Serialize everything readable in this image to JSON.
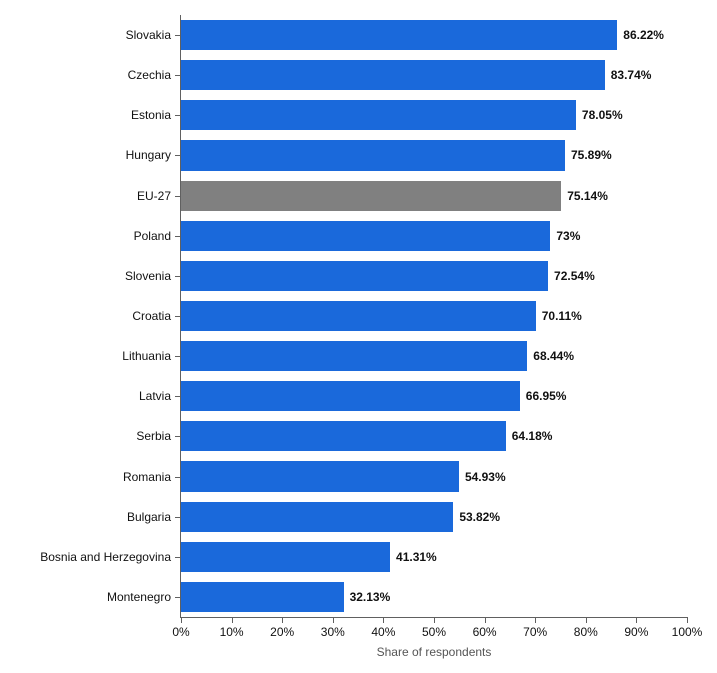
{
  "chart": {
    "type": "bar-horizontal",
    "background_color": "#ffffff",
    "axis_color": "#606060",
    "text_color": "#111111",
    "label_fontsize": 12,
    "xlabel": "Share of respondents",
    "xlabel_color": "#555555",
    "xlim": [
      0,
      100
    ],
    "xtick_step": 10,
    "xtick_suffix": "%",
    "bar_height_ratio": 0.75,
    "default_bar_color": "#1a69db",
    "highlight_bar_color": "#808080",
    "categories": [
      {
        "label": "Slovakia",
        "value": 86.22,
        "display": "86.22%",
        "highlight": false
      },
      {
        "label": "Czechia",
        "value": 83.74,
        "display": "83.74%",
        "highlight": false
      },
      {
        "label": "Estonia",
        "value": 78.05,
        "display": "78.05%",
        "highlight": false
      },
      {
        "label": "Hungary",
        "value": 75.89,
        "display": "75.89%",
        "highlight": false
      },
      {
        "label": "EU-27",
        "value": 75.14,
        "display": "75.14%",
        "highlight": true
      },
      {
        "label": "Poland",
        "value": 73,
        "display": "73%",
        "highlight": false
      },
      {
        "label": "Slovenia",
        "value": 72.54,
        "display": "72.54%",
        "highlight": false
      },
      {
        "label": "Croatia",
        "value": 70.11,
        "display": "70.11%",
        "highlight": false
      },
      {
        "label": "Lithuania",
        "value": 68.44,
        "display": "68.44%",
        "highlight": false
      },
      {
        "label": "Latvia",
        "value": 66.95,
        "display": "66.95%",
        "highlight": false
      },
      {
        "label": "Serbia",
        "value": 64.18,
        "display": "64.18%",
        "highlight": false
      },
      {
        "label": "Romania",
        "value": 54.93,
        "display": "54.93%",
        "highlight": false
      },
      {
        "label": "Bulgaria",
        "value": 53.82,
        "display": "53.82%",
        "highlight": false
      },
      {
        "label": "Bosnia and Herzegovina",
        "value": 41.31,
        "display": "41.31%",
        "highlight": false
      },
      {
        "label": "Montenegro",
        "value": 32.13,
        "display": "32.13%",
        "highlight": false
      }
    ]
  }
}
